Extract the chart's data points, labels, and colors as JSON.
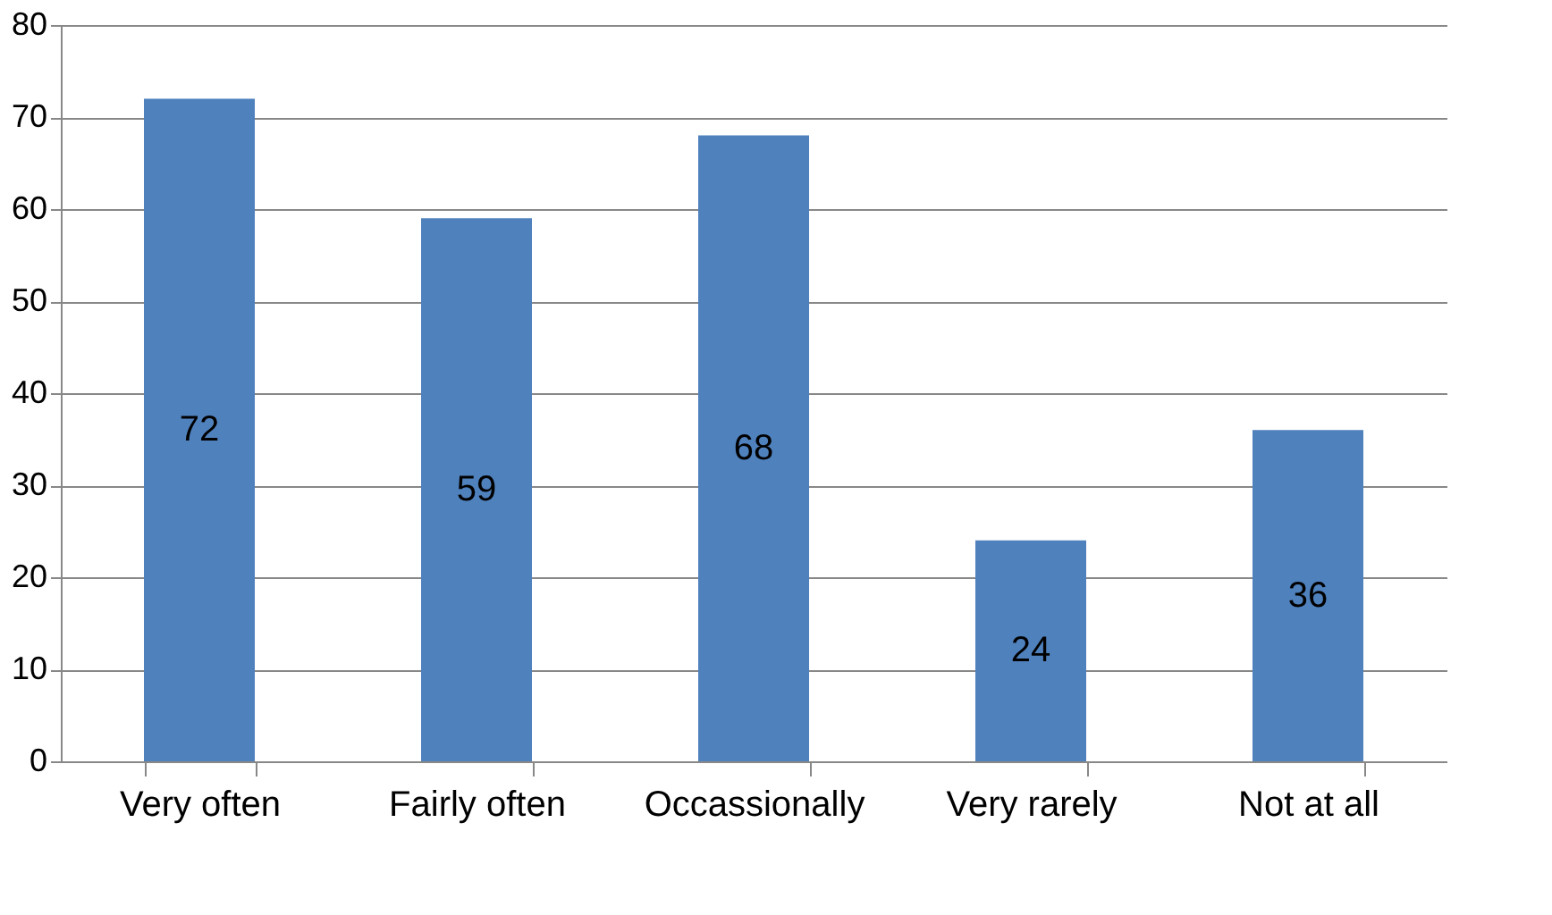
{
  "chart_data": {
    "type": "bar",
    "categories": [
      "Very often",
      "Fairly often",
      "Occassionally",
      "Very rarely",
      "Not at all"
    ],
    "values": [
      72,
      59,
      68,
      24,
      36
    ],
    "color": "#4f81bd",
    "ylim": [
      0,
      80
    ],
    "yticks": [
      0,
      10,
      20,
      30,
      40,
      50,
      60,
      70,
      80
    ],
    "grid": "y",
    "data_labels": true
  }
}
